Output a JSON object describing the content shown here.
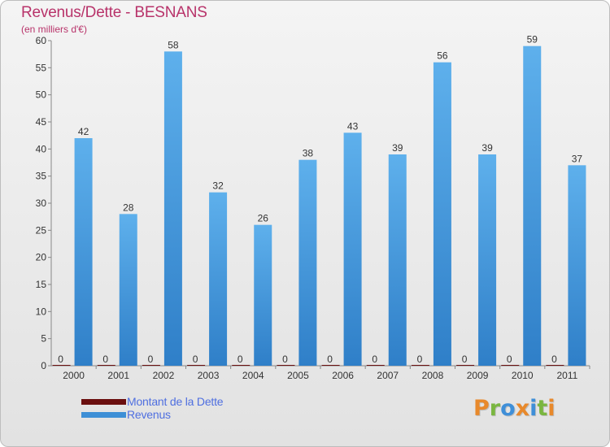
{
  "chart_data": {
    "type": "bar",
    "title": "Revenus/Dette - BESNANS",
    "subtitle": "(en milliers d'€)",
    "categories": [
      "2000",
      "2001",
      "2002",
      "2003",
      "2004",
      "2005",
      "2006",
      "2007",
      "2008",
      "2009",
      "2010",
      "2011"
    ],
    "series": [
      {
        "name": "Montant de la Dette",
        "color": "#6b0f0f",
        "values": [
          0,
          0,
          0,
          0,
          0,
          0,
          0,
          0,
          0,
          0,
          0,
          0
        ]
      },
      {
        "name": "Revenus",
        "color": "#3d8fd6",
        "values": [
          42,
          28,
          58,
          32,
          26,
          38,
          43,
          39,
          56,
          39,
          59,
          37
        ]
      }
    ],
    "ylim": [
      0,
      60
    ],
    "yticks": [
      0,
      5,
      10,
      15,
      20,
      25,
      30,
      35,
      40,
      45,
      50,
      55,
      60
    ],
    "grid": false,
    "legend_position": "bottom-left"
  },
  "logo": {
    "letters": [
      {
        "ch": "P",
        "color": "#e8892b"
      },
      {
        "ch": "r",
        "color": "#7ab640"
      },
      {
        "ch": "o",
        "color": "#3f8fd8"
      },
      {
        "ch": "x",
        "color": "#e8892b"
      },
      {
        "ch": "i",
        "color": "#3f8fd8"
      },
      {
        "ch": "t",
        "color": "#7ab640"
      },
      {
        "ch": "i",
        "color": "#e8892b"
      }
    ]
  }
}
